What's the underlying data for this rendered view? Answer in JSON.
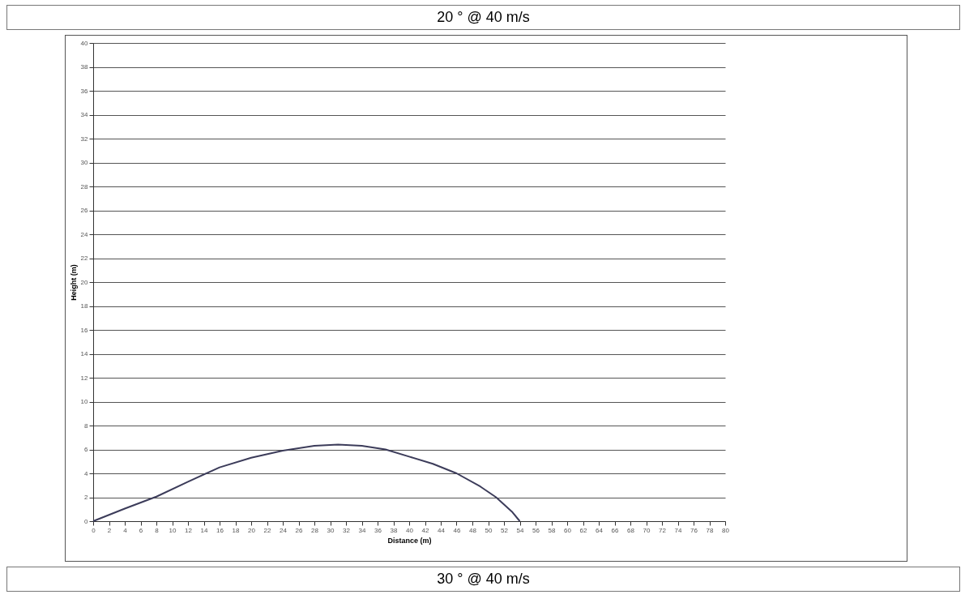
{
  "chart_data": {
    "type": "line",
    "title": "20 ° @ 40 m/s",
    "xlabel": "Distance (m)",
    "ylabel": "Height (m)",
    "x": [
      0,
      4,
      8,
      12,
      16,
      20,
      24,
      28,
      31,
      34,
      37,
      40,
      43,
      46,
      49,
      51,
      53,
      54
    ],
    "series": [
      {
        "color": "#3c3c5a",
        "values": [
          0,
          1.05,
          2.05,
          3.3,
          4.5,
          5.3,
          5.9,
          6.3,
          6.4,
          6.3,
          6.0,
          5.4,
          4.8,
          4.0,
          2.9,
          2.0,
          0.8,
          0
        ]
      }
    ],
    "xlim": [
      0,
      80
    ],
    "xticks": [
      0,
      2,
      4,
      6,
      8,
      10,
      12,
      14,
      16,
      18,
      20,
      22,
      24,
      26,
      28,
      30,
      32,
      34,
      36,
      38,
      40,
      42,
      44,
      46,
      48,
      50,
      52,
      54,
      56,
      58,
      60,
      62,
      64,
      66,
      68,
      70,
      72,
      74,
      76,
      78,
      80
    ],
    "ylim": [
      0,
      40
    ],
    "yticks": [
      0,
      2,
      4,
      6,
      8,
      10,
      12,
      14,
      16,
      18,
      20,
      22,
      24,
      26,
      28,
      30,
      32,
      34,
      36,
      38,
      40
    ],
    "grid": "y",
    "marker": "none",
    "line_style": "solid",
    "annotations": [
      "30 ° @ 40 m/s"
    ]
  }
}
